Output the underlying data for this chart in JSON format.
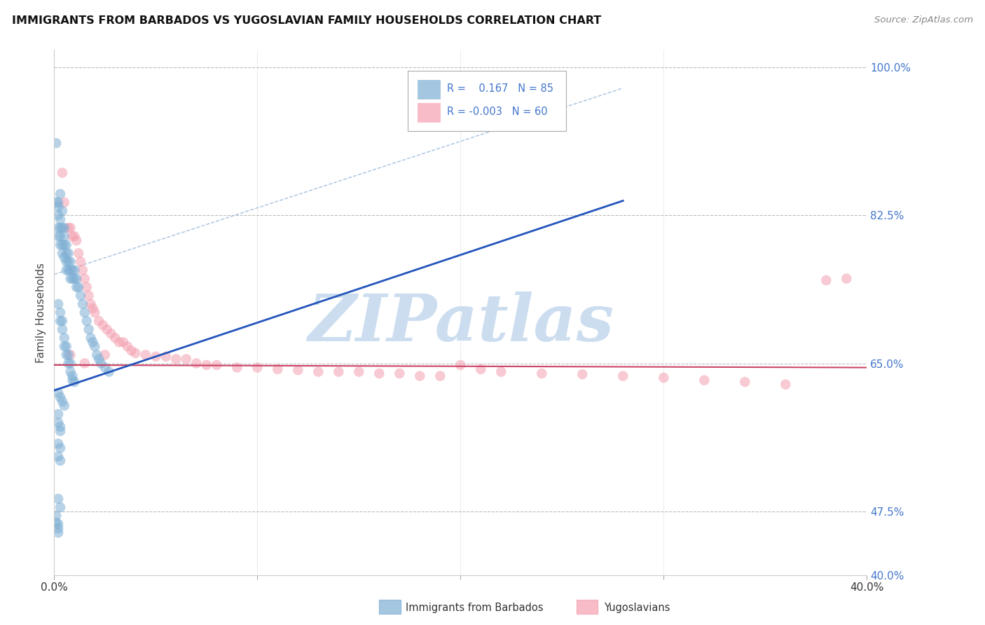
{
  "title": "IMMIGRANTS FROM BARBADOS VS YUGOSLAVIAN FAMILY HOUSEHOLDS CORRELATION CHART",
  "source": "Source: ZipAtlas.com",
  "ylabel": "Family Households",
  "watermark": "ZIPatlas",
  "legend": {
    "blue_R": "0.167",
    "blue_N": "85",
    "pink_R": "-0.003",
    "pink_N": "60"
  },
  "xlim": [
    0.0,
    0.4
  ],
  "ylim": [
    0.4,
    1.02
  ],
  "right_yticks": [
    1.0,
    0.825,
    0.65,
    0.475,
    0.4
  ],
  "right_ytick_labels": [
    "100.0%",
    "82.5%",
    "65.0%",
    "47.5%",
    "40.0%"
  ],
  "grid_yticks": [
    1.0,
    0.825,
    0.65,
    0.475
  ],
  "xticks": [
    0.0,
    0.1,
    0.2,
    0.3,
    0.4
  ],
  "blue_scatter_x": [
    0.001,
    0.001,
    0.002,
    0.002,
    0.002,
    0.002,
    0.002,
    0.003,
    0.003,
    0.003,
    0.003,
    0.003,
    0.004,
    0.004,
    0.004,
    0.004,
    0.005,
    0.005,
    0.005,
    0.005,
    0.006,
    0.006,
    0.006,
    0.006,
    0.007,
    0.007,
    0.007,
    0.008,
    0.008,
    0.008,
    0.009,
    0.009,
    0.01,
    0.01,
    0.011,
    0.011,
    0.012,
    0.013,
    0.014,
    0.015,
    0.016,
    0.017,
    0.018,
    0.019,
    0.02,
    0.021,
    0.022,
    0.023,
    0.025,
    0.027,
    0.002,
    0.003,
    0.003,
    0.004,
    0.004,
    0.005,
    0.005,
    0.006,
    0.006,
    0.007,
    0.007,
    0.008,
    0.008,
    0.009,
    0.009,
    0.01,
    0.002,
    0.003,
    0.004,
    0.005,
    0.002,
    0.002,
    0.003,
    0.003,
    0.002,
    0.003,
    0.002,
    0.003,
    0.002,
    0.003,
    0.001,
    0.001,
    0.002,
    0.002,
    0.002
  ],
  "blue_scatter_y": [
    0.91,
    0.84,
    0.84,
    0.835,
    0.825,
    0.81,
    0.8,
    0.85,
    0.82,
    0.81,
    0.8,
    0.79,
    0.83,
    0.81,
    0.79,
    0.78,
    0.81,
    0.8,
    0.79,
    0.775,
    0.79,
    0.78,
    0.77,
    0.76,
    0.78,
    0.77,
    0.76,
    0.77,
    0.76,
    0.75,
    0.76,
    0.75,
    0.76,
    0.75,
    0.75,
    0.74,
    0.74,
    0.73,
    0.72,
    0.71,
    0.7,
    0.69,
    0.68,
    0.675,
    0.67,
    0.66,
    0.655,
    0.65,
    0.645,
    0.64,
    0.72,
    0.71,
    0.7,
    0.7,
    0.69,
    0.68,
    0.67,
    0.67,
    0.66,
    0.66,
    0.65,
    0.65,
    0.64,
    0.635,
    0.63,
    0.628,
    0.615,
    0.61,
    0.605,
    0.6,
    0.59,
    0.58,
    0.575,
    0.57,
    0.555,
    0.55,
    0.54,
    0.535,
    0.49,
    0.48,
    0.47,
    0.462,
    0.46,
    0.455,
    0.45
  ],
  "pink_scatter_x": [
    0.004,
    0.005,
    0.007,
    0.008,
    0.009,
    0.01,
    0.011,
    0.012,
    0.013,
    0.014,
    0.015,
    0.016,
    0.017,
    0.018,
    0.019,
    0.02,
    0.022,
    0.024,
    0.026,
    0.028,
    0.03,
    0.032,
    0.034,
    0.036,
    0.038,
    0.04,
    0.045,
    0.05,
    0.055,
    0.06,
    0.065,
    0.07,
    0.075,
    0.08,
    0.09,
    0.1,
    0.11,
    0.12,
    0.13,
    0.14,
    0.15,
    0.16,
    0.17,
    0.18,
    0.19,
    0.2,
    0.21,
    0.22,
    0.24,
    0.26,
    0.28,
    0.3,
    0.32,
    0.34,
    0.36,
    0.38,
    0.39,
    0.008,
    0.015,
    0.025
  ],
  "pink_scatter_y": [
    0.875,
    0.84,
    0.81,
    0.81,
    0.8,
    0.8,
    0.795,
    0.78,
    0.77,
    0.76,
    0.75,
    0.74,
    0.73,
    0.72,
    0.715,
    0.71,
    0.7,
    0.695,
    0.69,
    0.685,
    0.68,
    0.675,
    0.675,
    0.67,
    0.665,
    0.662,
    0.66,
    0.658,
    0.658,
    0.655,
    0.655,
    0.65,
    0.648,
    0.648,
    0.645,
    0.645,
    0.643,
    0.642,
    0.64,
    0.64,
    0.64,
    0.638,
    0.638,
    0.635,
    0.635,
    0.648,
    0.643,
    0.64,
    0.638,
    0.637,
    0.635,
    0.633,
    0.63,
    0.628,
    0.625,
    0.748,
    0.75,
    0.66,
    0.65,
    0.66
  ],
  "blue_line_x": [
    0.0,
    0.28
  ],
  "blue_line_y": [
    0.618,
    0.842
  ],
  "pink_line_x": [
    0.0,
    0.4
  ],
  "pink_line_y": [
    0.648,
    0.645
  ],
  "dash_line_x": [
    0.0,
    0.28
  ],
  "dash_line_y": [
    0.755,
    0.975
  ],
  "blue_color": "#7fafd4",
  "pink_color": "#f4a0b0",
  "blue_line_color": "#2255bb",
  "pink_line_color": "#cc4466",
  "dash_color": "#99bbdd",
  "title_color": "#111111",
  "right_tick_color": "#4477cc",
  "grid_color": "#bbbbbb",
  "watermark_color": "#ccddf0",
  "background_color": "#ffffff",
  "figsize": [
    14.06,
    8.92
  ],
  "dpi": 100
}
